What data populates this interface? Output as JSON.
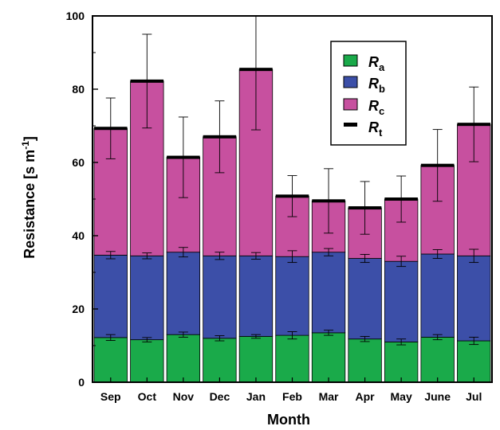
{
  "chart_data": {
    "type": "bar",
    "stacked": true,
    "categories": [
      "Sep",
      "Oct",
      "Nov",
      "Dec",
      "Jan",
      "Feb",
      "Mar",
      "Apr",
      "May",
      "June",
      "Jul"
    ],
    "xlabel": "Month",
    "ylabel": "Resistance [s m",
    "ylabel_sup": "-1",
    "ylabel_close": "]",
    "ylim": [
      0,
      100
    ],
    "yticks": [
      0,
      20,
      40,
      60,
      80,
      100
    ],
    "grid": false,
    "legend_position": "top-right",
    "series": [
      {
        "name": "R",
        "sub": "a",
        "color": "#1aaa4a",
        "values": [
          12.2,
          11.6,
          13.0,
          12.0,
          12.5,
          12.8,
          13.5,
          11.8,
          11.0,
          12.3,
          11.3
        ],
        "err": [
          0.8,
          0.6,
          0.7,
          0.7,
          0.5,
          1.0,
          0.7,
          0.7,
          0.8,
          0.7,
          1.0
        ]
      },
      {
        "name": "R",
        "sub": "b",
        "color": "#3c4fa8",
        "values": [
          22.5,
          22.9,
          22.5,
          22.5,
          22.0,
          21.5,
          22.0,
          22.0,
          22.0,
          22.7,
          23.2
        ],
        "err": [
          1.0,
          0.8,
          1.3,
          1.0,
          0.9,
          1.6,
          1.0,
          1.1,
          1.4,
          1.2,
          1.8
        ]
      },
      {
        "name": "R",
        "sub": "c",
        "color": "#c7509f",
        "values": [
          34.6,
          47.7,
          25.9,
          32.5,
          50.9,
          16.5,
          14.0,
          13.8,
          17.0,
          24.2,
          35.9
        ],
        "err": [
          8.3,
          12.8,
          11.0,
          9.8,
          16.5,
          5.6,
          8.8,
          7.2,
          6.3,
          9.8,
          10.2
        ]
      }
    ],
    "total": {
      "name": "R",
      "sub": "t",
      "color": "#000000",
      "values": [
        69.3,
        82.2,
        61.4,
        67.0,
        85.4,
        50.8,
        49.5,
        47.6,
        50.0,
        59.2,
        70.4
      ]
    }
  }
}
